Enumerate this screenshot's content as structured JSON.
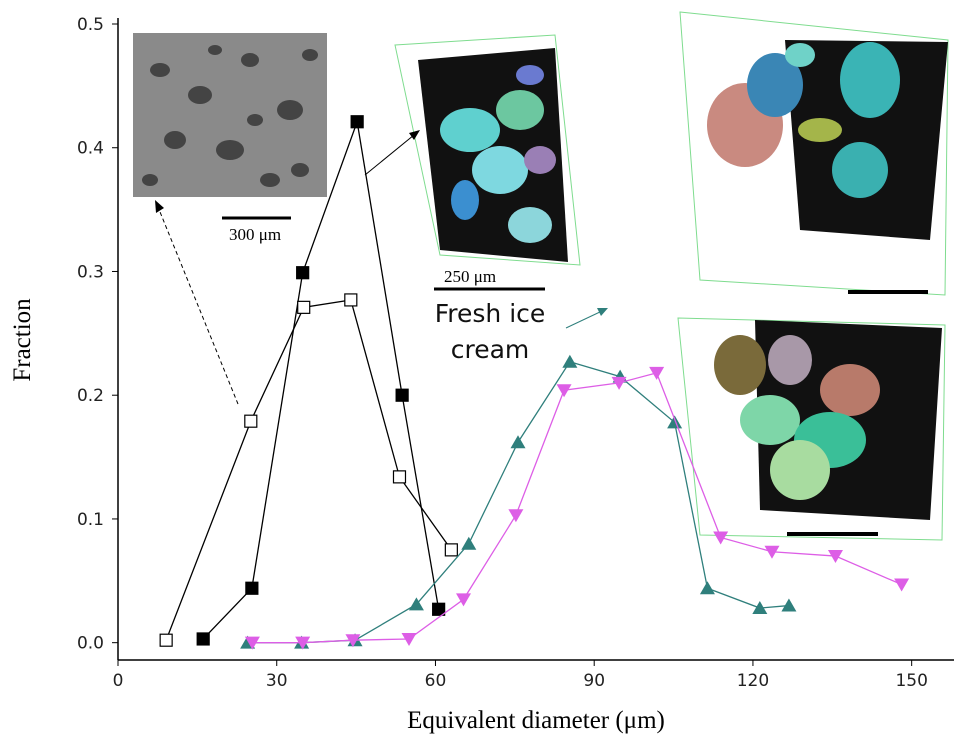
{
  "chart_data": {
    "type": "line",
    "xlabel": "Equivalent diameter (μm)",
    "ylabel": "Fraction",
    "xlim": [
      0,
      158
    ],
    "ylim": [
      -0.014,
      0.5
    ],
    "xticks": [
      0,
      30,
      60,
      90,
      120,
      150
    ],
    "yticks": [
      {
        "value": 0,
        "label": "0.0"
      },
      0.1,
      0.2,
      0.3,
      0.4,
      0.5
    ],
    "series": [
      {
        "color": "#000000",
        "marker": "square",
        "x": [
          16.1,
          25.3,
          34.9,
          45.2,
          53.7,
          60.6
        ],
        "values": [
          0.003,
          0.044,
          0.299,
          0.421,
          0.2,
          0.027
        ]
      },
      {
        "color": "#000000",
        "marker": "square-open",
        "x": [
          9.1,
          25.1,
          35.1,
          44,
          53.2,
          63
        ],
        "values": [
          0.002,
          0.179,
          0.271,
          0.277,
          0.134,
          0.075
        ]
      },
      {
        "color": "#2f7f7c",
        "marker": "triangle-up",
        "x": [
          24.5,
          34.7,
          44.8,
          56.4,
          66.3,
          75.6,
          85.4,
          94.9,
          105.2,
          111.4,
          121.3,
          126.8
        ],
        "values": [
          0,
          0,
          0.002,
          0.031,
          0.08,
          0.162,
          0.227,
          0.215,
          0.178,
          0.044,
          0.028,
          0.03
        ]
      },
      {
        "color": "#dd5ee6",
        "marker": "triangle-down",
        "x": [
          25.4,
          34.9,
          44.4,
          55,
          65.3,
          75.2,
          84.3,
          94.7,
          101.8,
          113.9,
          123.6,
          135.6,
          148.1
        ],
        "values": [
          0,
          0,
          0.002,
          0.003,
          0.035,
          0.103,
          0.204,
          0.21,
          0.218,
          0.085,
          0.0735,
          0.07,
          0.047
        ]
      }
    ],
    "annotations": [
      "300 μm",
      "250 μm",
      "Fresh ice cream"
    ]
  }
}
